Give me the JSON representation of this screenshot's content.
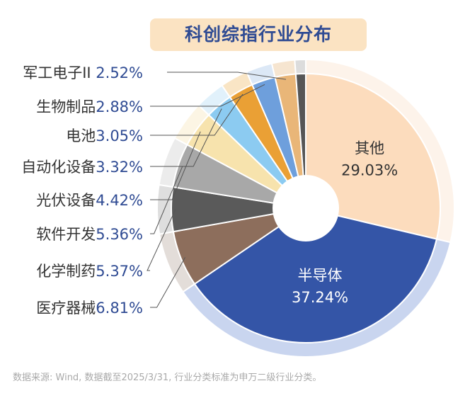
{
  "chart_data": {
    "type": "pie",
    "title": "科创综指行业分布",
    "donut": true,
    "slices": [
      {
        "label": "其他",
        "value": 29.03,
        "value_label": "29.03%",
        "color": "#fcdcbd",
        "halo_color": "#fdf3ea"
      },
      {
        "label": "半导体",
        "value": 37.24,
        "value_label": "37.24%",
        "color": "#3455a7",
        "halo_color": "#c9d5ef"
      },
      {
        "label": "医疗器械",
        "value": 6.81,
        "value_label": "6.81%",
        "color": "#8d6e5c",
        "halo_color": "#e3ddd9"
      },
      {
        "label": "化学制药",
        "value": 5.37,
        "value_label": "5.37%",
        "color": "#5a5a5a",
        "halo_color": "#dedede"
      },
      {
        "label": "软件开发",
        "value": 5.36,
        "value_label": "5.36%",
        "color": "#a8a8a8",
        "halo_color": "#ececec"
      },
      {
        "label": "光伏设备",
        "value": 4.42,
        "value_label": "4.42%",
        "color": "#f7e3ad",
        "halo_color": "#fcf5e4"
      },
      {
        "label": "自动化设备",
        "value": 3.32,
        "value_label": "3.32%",
        "color": "#8ccbf1",
        "halo_color": "#e1f1fb"
      },
      {
        "label": "电池",
        "value": 3.05,
        "value_label": "3.05%",
        "color": "#eaa035",
        "halo_color": "#f9e5c5"
      },
      {
        "label": "生物制品",
        "value": 2.88,
        "value_label": "2.88%",
        "color": "#6e9fdc",
        "halo_color": "#dce8f6"
      },
      {
        "label": "军工电子II",
        "value": 2.52,
        "value_label": "2.52%",
        "color": "#e9b678",
        "halo_color": "#f6e5d0"
      },
      {
        "label": "",
        "value": 1.2,
        "value_label": "",
        "color": "#565656",
        "halo_color": "#dcdcdc"
      }
    ],
    "legend_order": [
      "军工电子II",
      "生物制品",
      "电池",
      "自动化设备",
      "光伏设备",
      "软件开发",
      "化学制药",
      "医疗器械"
    ]
  },
  "footnote": "数据来源: Wind, 数据截至2025/3/31, 行业分类标准为申万二级行业分类。"
}
